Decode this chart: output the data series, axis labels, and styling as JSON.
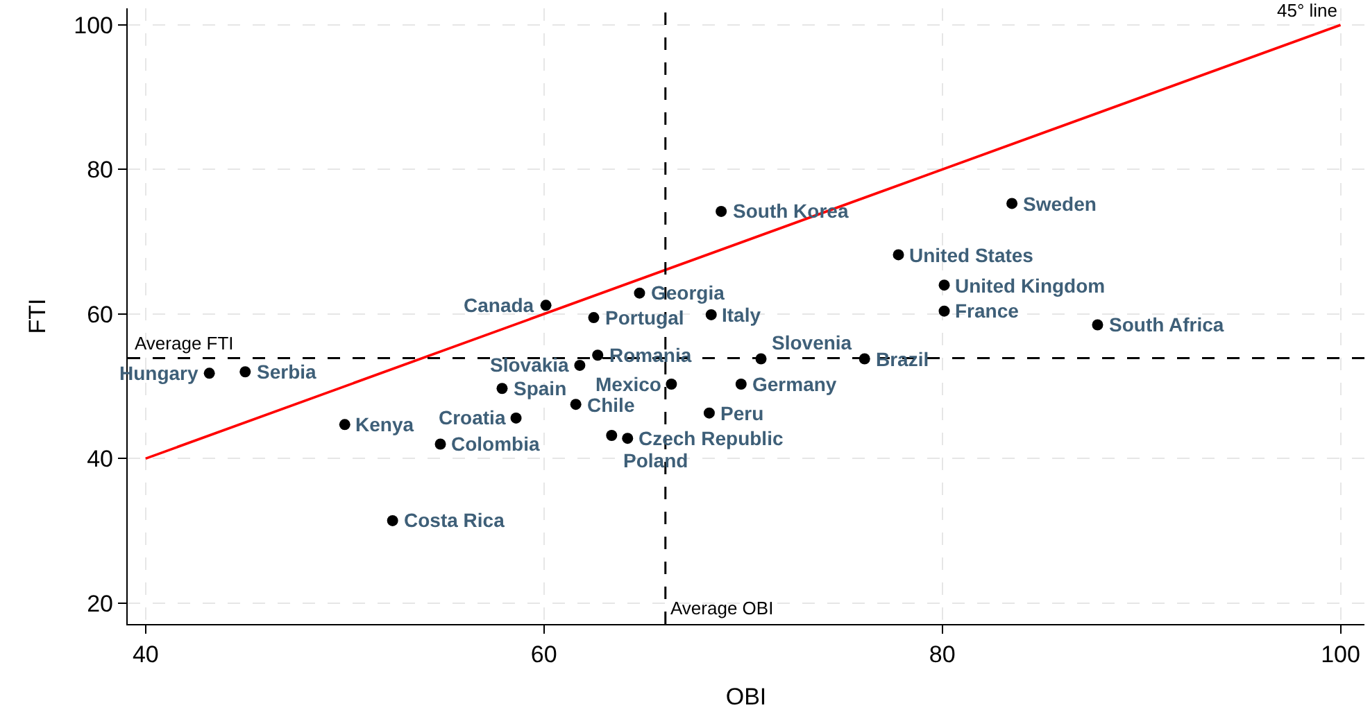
{
  "chart_data": {
    "type": "scatter",
    "xlabel": "OBI",
    "ylabel": "FTI",
    "xlim": [
      39.1,
      101.2
    ],
    "ylim": [
      17.1,
      102.3
    ],
    "xticks": [
      40,
      60,
      80,
      100
    ],
    "yticks": [
      20,
      40,
      60,
      80,
      100
    ],
    "grid": true,
    "series": [
      {
        "marker": "circle",
        "color": "#000000",
        "x": [
          43.2,
          45.0,
          50.0,
          54.8,
          52.4,
          60.1,
          57.9,
          58.6,
          61.6,
          61.8,
          62.7,
          62.5,
          64.8,
          63.4,
          64.2,
          66.4,
          69.9,
          68.3,
          68.4,
          68.9,
          70.9,
          76.1,
          77.8,
          80.1,
          80.1,
          83.5,
          87.8
        ],
        "values": [
          51.8,
          52.0,
          44.7,
          42.0,
          31.4,
          61.2,
          49.7,
          45.6,
          47.5,
          52.9,
          54.3,
          59.5,
          62.9,
          43.2,
          42.8,
          50.3,
          50.3,
          46.3,
          59.9,
          74.2,
          53.8,
          53.8,
          68.2,
          64.0,
          60.4,
          75.3,
          58.5
        ]
      },
      {
        "type": "line",
        "color": "#ff0000",
        "x": [
          40,
          100
        ],
        "values": [
          40,
          100
        ]
      }
    ],
    "ref_lines": [
      {
        "axis": "y",
        "value": 53.9,
        "label": "Average FTI",
        "color": "#000000",
        "line_style": "dashed"
      },
      {
        "axis": "x",
        "value": 66.1,
        "label": "Average OBI",
        "color": "#000000",
        "line_style": "dashed"
      }
    ],
    "annotations": [
      {
        "text": "Hungary",
        "x": 43.2,
        "y": 51.8
      },
      {
        "text": "Serbia",
        "x": 45.0,
        "y": 52.0
      },
      {
        "text": "Kenya",
        "x": 50.0,
        "y": 44.7
      },
      {
        "text": "Colombia",
        "x": 54.8,
        "y": 42.0
      },
      {
        "text": "Costa Rica",
        "x": 52.4,
        "y": 31.4
      },
      {
        "text": "Canada",
        "x": 60.1,
        "y": 61.2
      },
      {
        "text": "Spain",
        "x": 57.9,
        "y": 49.7
      },
      {
        "text": "Croatia",
        "x": 58.6,
        "y": 45.6
      },
      {
        "text": "Chile",
        "x": 61.6,
        "y": 47.5
      },
      {
        "text": "Slovakia",
        "x": 61.8,
        "y": 52.9
      },
      {
        "text": "Romania",
        "x": 62.7,
        "y": 54.3
      },
      {
        "text": "Portugal",
        "x": 62.5,
        "y": 59.5
      },
      {
        "text": "Georgia",
        "x": 64.8,
        "y": 62.9
      },
      {
        "text": "Poland",
        "x": 63.4,
        "y": 43.2
      },
      {
        "text": "Czech Republic",
        "x": 64.2,
        "y": 42.8
      },
      {
        "text": "Mexico",
        "x": 66.4,
        "y": 50.3
      },
      {
        "text": "Germany",
        "x": 69.9,
        "y": 50.3
      },
      {
        "text": "Peru",
        "x": 68.3,
        "y": 46.3
      },
      {
        "text": "Italy",
        "x": 68.4,
        "y": 59.9
      },
      {
        "text": "South Korea",
        "x": 68.9,
        "y": 74.2
      },
      {
        "text": "Slovenia",
        "x": 70.9,
        "y": 53.8
      },
      {
        "text": "Brazil",
        "x": 76.1,
        "y": 53.8
      },
      {
        "text": "United States",
        "x": 77.8,
        "y": 68.2
      },
      {
        "text": "United Kingdom",
        "x": 80.1,
        "y": 64.0
      },
      {
        "text": "France",
        "x": 80.1,
        "y": 60.4
      },
      {
        "text": "Sweden",
        "x": 83.5,
        "y": 75.3
      },
      {
        "text": "South Africa",
        "x": 87.8,
        "y": 58.5
      },
      {
        "text": "45° line",
        "x": 100,
        "y": 100
      }
    ]
  }
}
